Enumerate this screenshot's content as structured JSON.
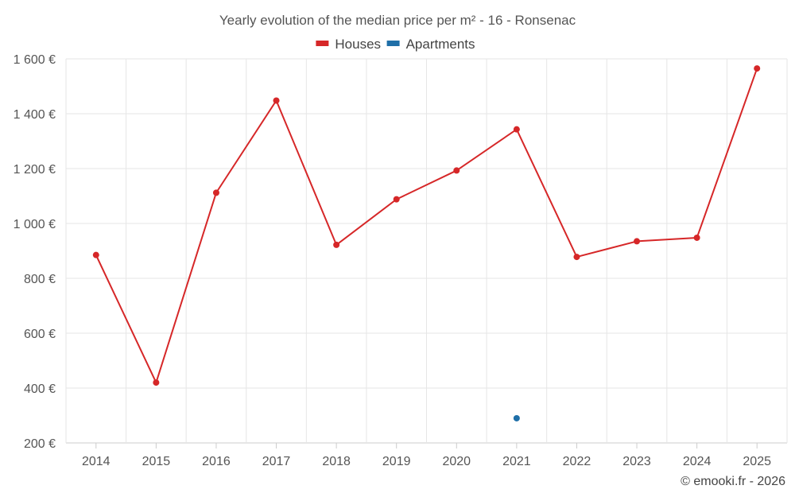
{
  "chart_data": {
    "type": "line",
    "title": "Yearly evolution of the median price per m² - 16 - Ronsenac",
    "categories": [
      "2014",
      "2015",
      "2016",
      "2017",
      "2018",
      "2019",
      "2020",
      "2021",
      "2022",
      "2023",
      "2024",
      "2025"
    ],
    "series": [
      {
        "name": "Houses",
        "color": "#d62728",
        "values": [
          885,
          420,
          1112,
          1448,
          922,
          1088,
          1193,
          1343,
          878,
          935,
          948,
          1565
        ]
      },
      {
        "name": "Apartments",
        "color": "#1f6fa8",
        "values": [
          null,
          null,
          null,
          null,
          null,
          null,
          null,
          290,
          null,
          null,
          null,
          null
        ]
      }
    ],
    "ylim": [
      200,
      1600
    ],
    "yticks": [
      200,
      400,
      600,
      800,
      1000,
      1200,
      1400,
      1600
    ],
    "ytick_labels": [
      "200 €",
      "400 €",
      "600 €",
      "800 €",
      "1 000 €",
      "1 200 €",
      "1 400 €",
      "1 600 €"
    ],
    "xlabel": "",
    "ylabel": "",
    "grid": true,
    "legend_position": "top-center"
  },
  "credit": "© emooki.fr - 2026"
}
